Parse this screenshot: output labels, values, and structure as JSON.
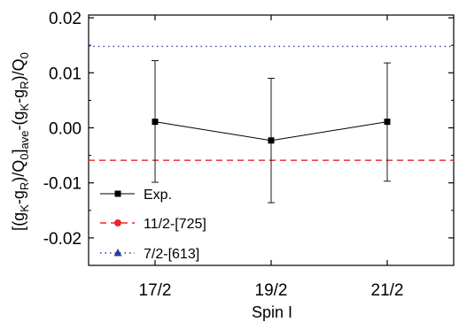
{
  "chart_data": {
    "type": "line",
    "xlabel": "Spin I",
    "ylabel_parts": [
      "[(g",
      "K",
      "-g",
      "R",
      ")/Q",
      "0",
      "]",
      "ave",
      "-(g",
      "K",
      "-g",
      "R",
      ")/Q",
      "0"
    ],
    "categories": [
      "17/2",
      "19/2",
      "21/2"
    ],
    "ylim": [
      -0.025,
      0.0205
    ],
    "yticks": [
      "0.02",
      "0.01",
      "0.00",
      "-0.01",
      "-0.02"
    ],
    "ytick_values": [
      0.02,
      0.01,
      0.0,
      -0.01,
      -0.02
    ],
    "series": [
      {
        "name": "Exp.",
        "marker": "square",
        "color": "#000000",
        "values": [
          0.0011,
          -0.0023,
          0.0011
        ],
        "err_upper": [
          0.0122,
          0.009,
          0.0118
        ],
        "err_lower": [
          -0.0099,
          -0.0136,
          -0.0097
        ]
      },
      {
        "name": "11/2-[725]",
        "marker": "circle",
        "style": "dashed",
        "color": "#e8262b",
        "value": -0.0059
      },
      {
        "name": "7/2-[613]",
        "marker": "triangle",
        "style": "dotted",
        "color": "#2b3f9a",
        "value": 0.0148
      }
    ],
    "legend_position": "bottom-left",
    "grid": false
  }
}
